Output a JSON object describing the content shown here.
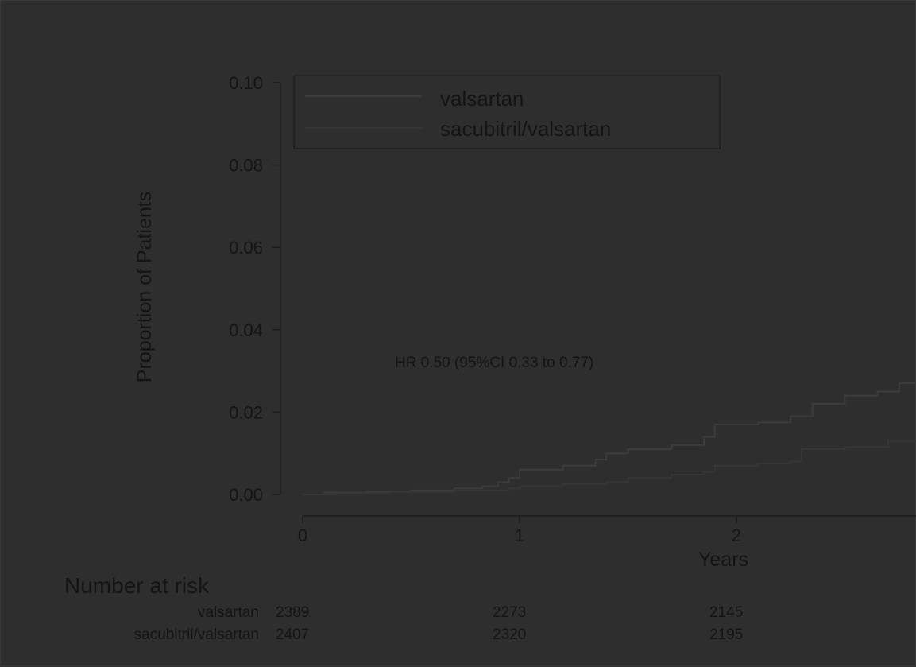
{
  "chart_data": {
    "type": "line",
    "title": "",
    "xlabel": "Years",
    "ylabel": "Proportion of Patients",
    "xlim": [
      0,
      2.85
    ],
    "ylim": [
      0,
      0.1
    ],
    "xticks": [
      0,
      1,
      2
    ],
    "yticks": [
      0.0,
      0.02,
      0.04,
      0.06,
      0.08,
      0.1
    ],
    "ytick_labels": [
      "0.00",
      "0.02",
      "0.04",
      "0.06",
      "0.08",
      "0.10"
    ],
    "xtick_labels": [
      "0",
      "1",
      "2"
    ],
    "legend_placement": "top-left",
    "annotation": "HR 0.50 (95%CI 0.33 to 0.77)",
    "series": [
      {
        "name": "valsartan",
        "color": "#3c3c3c",
        "points": [
          [
            0,
            0
          ],
          [
            0.1,
            0.0005
          ],
          [
            0.3,
            0.0007
          ],
          [
            0.5,
            0.001
          ],
          [
            0.7,
            0.0015
          ],
          [
            0.83,
            0.002
          ],
          [
            0.9,
            0.003
          ],
          [
            0.95,
            0.004
          ],
          [
            1.0,
            0.006
          ],
          [
            1.2,
            0.007
          ],
          [
            1.35,
            0.0085
          ],
          [
            1.4,
            0.01
          ],
          [
            1.5,
            0.011
          ],
          [
            1.7,
            0.012
          ],
          [
            1.85,
            0.014
          ],
          [
            1.9,
            0.017
          ],
          [
            2.1,
            0.0175
          ],
          [
            2.25,
            0.019
          ],
          [
            2.35,
            0.022
          ],
          [
            2.5,
            0.024
          ],
          [
            2.65,
            0.025
          ],
          [
            2.75,
            0.027
          ],
          [
            2.85,
            0.027
          ]
        ]
      },
      {
        "name": "sacubitril/valsartan",
        "color": "#363636",
        "points": [
          [
            0,
            0
          ],
          [
            0.15,
            0.0003
          ],
          [
            0.4,
            0.0006
          ],
          [
            0.7,
            0.001
          ],
          [
            0.95,
            0.0015
          ],
          [
            1.0,
            0.002
          ],
          [
            1.2,
            0.0025
          ],
          [
            1.4,
            0.003
          ],
          [
            1.5,
            0.004
          ],
          [
            1.7,
            0.0048
          ],
          [
            1.85,
            0.0055
          ],
          [
            1.9,
            0.007
          ],
          [
            2.1,
            0.0075
          ],
          [
            2.25,
            0.008
          ],
          [
            2.3,
            0.011
          ],
          [
            2.5,
            0.0115
          ],
          [
            2.7,
            0.013
          ],
          [
            2.85,
            0.014
          ]
        ]
      }
    ]
  },
  "risk_table": {
    "title": "Number at risk",
    "rows": [
      {
        "label": "valsartan",
        "values": [
          "2389",
          "2273",
          "2145"
        ]
      },
      {
        "label": "sacubitril/valsartan",
        "values": [
          "2407",
          "2320",
          "2195"
        ]
      }
    ]
  }
}
